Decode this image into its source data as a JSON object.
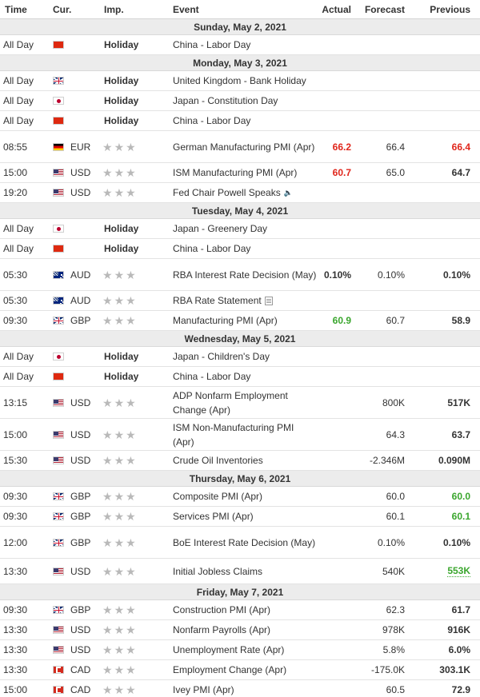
{
  "header": {
    "time": "Time",
    "cur": "Cur.",
    "imp": "Imp.",
    "event": "Event",
    "actual": "Actual",
    "forecast": "Forecast",
    "previous": "Previous"
  },
  "colors": {
    "beat": "#3aa62d",
    "miss": "#e0261b",
    "neutral": "#333333"
  },
  "days": [
    {
      "date": "Sunday, May 2, 2021",
      "rows": [
        {
          "time": "All Day",
          "flag": "cn",
          "cur": "",
          "holiday": "Holiday",
          "event": "China - Labor Day",
          "actual": "",
          "forecast": "",
          "previous": "",
          "h": "r1"
        }
      ]
    },
    {
      "date": "Monday, May 3, 2021",
      "rows": [
        {
          "time": "All Day",
          "flag": "gb",
          "cur": "",
          "holiday": "Holiday",
          "event": "United Kingdom - Bank Holiday",
          "actual": "",
          "forecast": "",
          "previous": "",
          "h": "r1"
        },
        {
          "time": "All Day",
          "flag": "jp",
          "cur": "",
          "holiday": "Holiday",
          "event": "Japan - Constitution Day",
          "actual": "",
          "forecast": "",
          "previous": "",
          "h": "r1"
        },
        {
          "time": "All Day",
          "flag": "cn",
          "cur": "",
          "holiday": "Holiday",
          "event": "China - Labor Day",
          "actual": "",
          "forecast": "",
          "previous": "",
          "h": "r1"
        },
        {
          "time": "08:55",
          "flag": "de",
          "cur": "EUR",
          "holiday": "",
          "event": "German Manufacturing PMI (Apr)",
          "actual": "66.2",
          "actualColor": "red",
          "forecast": "66.4",
          "previous": "66.4",
          "prevColor": "red",
          "h": "r2"
        },
        {
          "time": "15:00",
          "flag": "us",
          "cur": "USD",
          "holiday": "",
          "event": "ISM Manufacturing PMI (Apr)",
          "actual": "60.7",
          "actualColor": "red",
          "forecast": "65.0",
          "previous": "64.7",
          "prevColor": "black",
          "h": "r1"
        },
        {
          "time": "19:20",
          "flag": "us",
          "cur": "USD",
          "holiday": "",
          "event": "Fed Chair Powell Speaks",
          "icon": "speaker-icon",
          "actual": "",
          "forecast": "",
          "previous": "",
          "h": "r1"
        }
      ]
    },
    {
      "date": "Tuesday, May 4, 2021",
      "rows": [
        {
          "time": "All Day",
          "flag": "jp",
          "cur": "",
          "holiday": "Holiday",
          "event": "Japan - Greenery Day",
          "actual": "",
          "forecast": "",
          "previous": "",
          "h": "r1"
        },
        {
          "time": "All Day",
          "flag": "cn",
          "cur": "",
          "holiday": "Holiday",
          "event": "China - Labor Day",
          "actual": "",
          "forecast": "",
          "previous": "",
          "h": "r1"
        },
        {
          "time": "05:30",
          "flag": "au",
          "cur": "AUD",
          "holiday": "",
          "event": "RBA Interest Rate Decision (May)",
          "actual": "0.10%",
          "actualColor": "black",
          "forecast": "0.10%",
          "previous": "0.10%",
          "prevColor": "black",
          "h": "r2"
        },
        {
          "time": "05:30",
          "flag": "au",
          "cur": "AUD",
          "holiday": "",
          "event": "RBA Rate Statement",
          "icon": "document-icon",
          "actual": "",
          "forecast": "",
          "previous": "",
          "h": "r1"
        },
        {
          "time": "09:30",
          "flag": "gb",
          "cur": "GBP",
          "holiday": "",
          "event": "Manufacturing PMI (Apr)",
          "actual": "60.9",
          "actualColor": "green",
          "forecast": "60.7",
          "previous": "58.9",
          "prevColor": "black",
          "h": "r1"
        }
      ]
    },
    {
      "date": "Wednesday, May 5, 2021",
      "rows": [
        {
          "time": "All Day",
          "flag": "jp",
          "cur": "",
          "holiday": "Holiday",
          "event": "Japan - Children's Day",
          "actual": "",
          "forecast": "",
          "previous": "",
          "h": "r1"
        },
        {
          "time": "All Day",
          "flag": "cn",
          "cur": "",
          "holiday": "Holiday",
          "event": "China - Labor Day",
          "actual": "",
          "forecast": "",
          "previous": "",
          "h": "r1"
        },
        {
          "time": "13:15",
          "flag": "us",
          "cur": "USD",
          "holiday": "",
          "event": "ADP Nonfarm Employment Change (Apr)",
          "actual": "",
          "forecast": "800K",
          "previous": "517K",
          "prevColor": "black",
          "h": "r2"
        },
        {
          "time": "15:00",
          "flag": "us",
          "cur": "USD",
          "holiday": "",
          "event": "ISM Non-Manufacturing PMI (Apr)",
          "actual": "",
          "forecast": "64.3",
          "previous": "63.7",
          "prevColor": "black",
          "h": "r2"
        },
        {
          "time": "15:30",
          "flag": "us",
          "cur": "USD",
          "holiday": "",
          "event": "Crude Oil Inventories",
          "actual": "",
          "forecast": "-2.346M",
          "previous": "0.090M",
          "prevColor": "black",
          "h": "r1"
        }
      ]
    },
    {
      "date": "Thursday, May 6, 2021",
      "rows": [
        {
          "time": "09:30",
          "flag": "gb",
          "cur": "GBP",
          "holiday": "",
          "event": "Composite PMI (Apr)",
          "actual": "",
          "forecast": "60.0",
          "previous": "60.0",
          "prevColor": "green",
          "h": "r1"
        },
        {
          "time": "09:30",
          "flag": "gb",
          "cur": "GBP",
          "holiday": "",
          "event": "Services PMI (Apr)",
          "actual": "",
          "forecast": "60.1",
          "previous": "60.1",
          "prevColor": "green",
          "h": "r1"
        },
        {
          "time": "12:00",
          "flag": "gb",
          "cur": "GBP",
          "holiday": "",
          "event": "BoE Interest Rate Decision (May)",
          "actual": "",
          "forecast": "0.10%",
          "previous": "0.10%",
          "prevColor": "black",
          "h": "r2"
        },
        {
          "time": "13:30",
          "flag": "us",
          "cur": "USD",
          "holiday": "",
          "event": "Initial Jobless Claims",
          "actual": "",
          "forecast": "540K",
          "previous": "553K",
          "prevColor": "green-u",
          "h": "r3"
        }
      ]
    },
    {
      "date": "Friday, May 7, 2021",
      "rows": [
        {
          "time": "09:30",
          "flag": "gb",
          "cur": "GBP",
          "holiday": "",
          "event": "Construction PMI (Apr)",
          "actual": "",
          "forecast": "62.3",
          "previous": "61.7",
          "prevColor": "black",
          "h": "r1"
        },
        {
          "time": "13:30",
          "flag": "us",
          "cur": "USD",
          "holiday": "",
          "event": "Nonfarm Payrolls (Apr)",
          "actual": "",
          "forecast": "978K",
          "previous": "916K",
          "prevColor": "black",
          "h": "r1"
        },
        {
          "time": "13:30",
          "flag": "us",
          "cur": "USD",
          "holiday": "",
          "event": "Unemployment Rate (Apr)",
          "actual": "",
          "forecast": "5.8%",
          "previous": "6.0%",
          "prevColor": "black",
          "h": "r1"
        },
        {
          "time": "13:30",
          "flag": "ca",
          "cur": "CAD",
          "holiday": "",
          "event": "Employment Change (Apr)",
          "actual": "",
          "forecast": "-175.0K",
          "previous": "303.1K",
          "prevColor": "black",
          "h": "r1"
        },
        {
          "time": "15:00",
          "flag": "ca",
          "cur": "CAD",
          "holiday": "",
          "event": "Ivey PMI (Apr)",
          "actual": "",
          "forecast": "60.5",
          "previous": "72.9",
          "prevColor": "black",
          "h": "r1"
        }
      ]
    }
  ]
}
